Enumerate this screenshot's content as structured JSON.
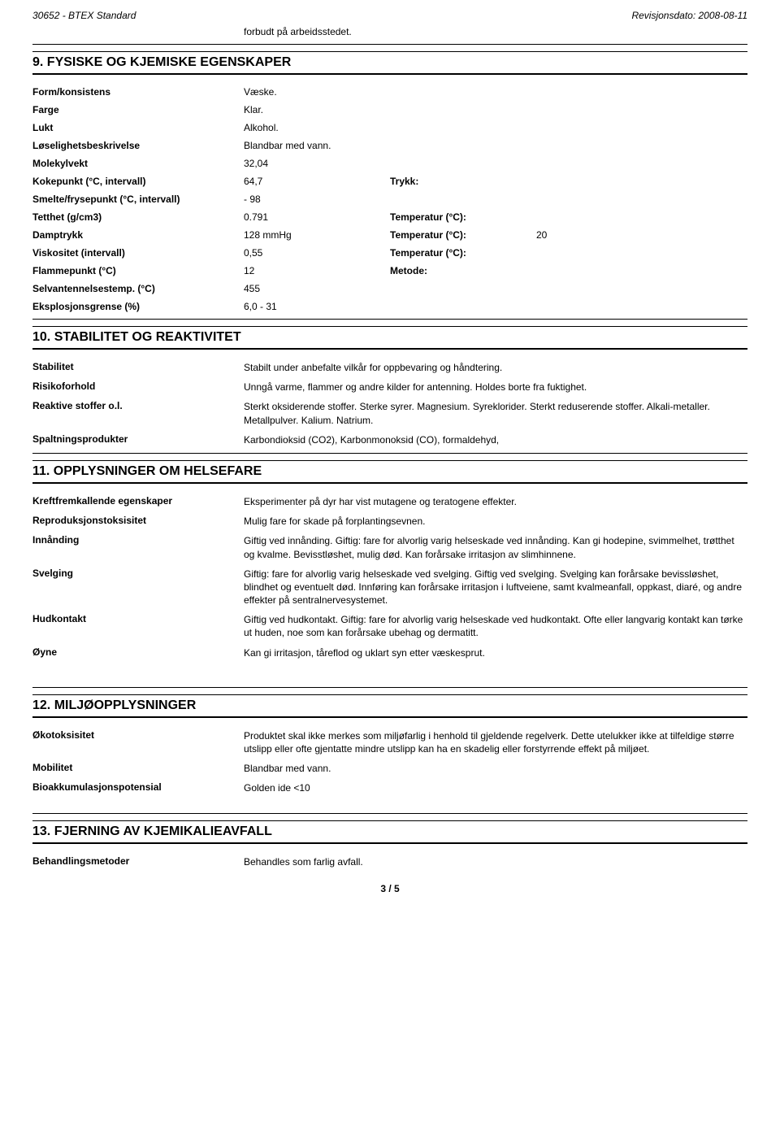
{
  "header": {
    "left": "30652 - BTEX Standard",
    "right": "Revisjonsdato: 2008-08-11"
  },
  "carryover_text": "forbudt på arbeidsstedet.",
  "sections": {
    "s9": "9.   FYSISKE OG KJEMISKE EGENSKAPER",
    "s10": "10.   STABILITET OG REAKTIVITET",
    "s11": "11.   OPPLYSNINGER OM HELSEFARE",
    "s12": "12.   MILJØOPPLYSNINGER",
    "s13": "13.   FJERNING AV KJEMIKALIEAVFALL"
  },
  "s9_props": [
    {
      "k": "Form/konsistens",
      "v": "Væske."
    },
    {
      "k": "Farge",
      "v": "Klar."
    },
    {
      "k": "Lukt",
      "v": "Alkohol."
    },
    {
      "k": "Løselighetsbeskrivelse",
      "v": "Blandbar med vann."
    },
    {
      "k": "Molekylvekt",
      "v": "32,04"
    },
    {
      "k": "Kokepunkt (°C, intervall)",
      "v": "64,7",
      "k2": "Trykk:"
    },
    {
      "k": "Smelte/frysepunkt (°C, intervall)",
      "v": "- 98"
    },
    {
      "k": "Tetthet (g/cm3)",
      "v": "0.791",
      "k2": "Temperatur (°C):"
    },
    {
      "k": "Damptrykk",
      "v": "128 mmHg",
      "k2": "Temperatur (°C):",
      "v2": "20"
    },
    {
      "k": "Viskositet (intervall)",
      "v": "0,55",
      "k2": "Temperatur (°C):"
    },
    {
      "k": "Flammepunkt (°C)",
      "v": "12",
      "k2": "Metode:"
    },
    {
      "k": "Selvantennelsestemp. (°C)",
      "v": "455"
    },
    {
      "k": "Eksplosjonsgrense (%)",
      "v": "6,0 - 31"
    }
  ],
  "s10_items": [
    {
      "k": "Stabilitet",
      "v": "Stabilt under anbefalte vilkår for oppbevaring og håndtering."
    },
    {
      "k": "Risikoforhold",
      "v": "Unngå varme, flammer og andre kilder for antenning. Holdes borte fra fuktighet."
    },
    {
      "k": "Reaktive stoffer o.l.",
      "v": "Sterkt oksiderende stoffer. Sterke syrer. Magnesium. Syreklorider. Sterkt reduserende stoffer. Alkali-metaller. Metallpulver. Kalium. Natrium."
    },
    {
      "k": "Spaltningsprodukter",
      "v": "Karbondioksid (CO2), Karbonmonoksid (CO), formaldehyd,"
    }
  ],
  "s11_items": [
    {
      "k": "Kreftfremkallende egenskaper",
      "v": "Eksperimenter på dyr har vist mutagene og teratogene effekter."
    },
    {
      "k": "Reproduksjonstoksisitet",
      "v": "Mulig fare for skade på forplantingsevnen."
    },
    {
      "k": "Innånding",
      "v": "Giftig ved innånding. Giftig: fare for alvorlig varig helseskade ved innånding. Kan gi hodepine, svimmelhet, trøtthet og kvalme. Bevisstløshet, mulig død. Kan forårsake irritasjon av slimhinnene."
    },
    {
      "k": "Svelging",
      "v": "Giftig: fare for alvorlig varig helseskade ved svelging. Giftig ved svelging. Svelging kan forårsake bevissløshet, blindhet og eventuelt død. Innføring kan forårsake irritasjon i luftveiene, samt kvalmeanfall, oppkast, diaré, og andre effekter på sentralnervesystemet."
    },
    {
      "k": "Hudkontakt",
      "v": "Giftig ved hudkontakt. Giftig: fare for alvorlig varig helseskade ved hudkontakt. Ofte eller langvarig kontakt kan tørke ut huden, noe som kan forårsake ubehag og dermatitt."
    },
    {
      "k": "Øyne",
      "v": "Kan gi irritasjon, tåreflod og uklart syn etter væskesprut."
    }
  ],
  "s12_items": [
    {
      "k": "Økotoksisitet",
      "v": "Produktet skal ikke merkes som miljøfarlig i henhold til gjeldende regelverk. Dette utelukker ikke at tilfeldige større utslipp eller ofte gjentatte mindre utslipp kan ha en skadelig eller forstyrrende effekt på miljøet."
    },
    {
      "k": "Mobilitet",
      "v": "Blandbar med vann."
    },
    {
      "k": "Bioakkumulasjonspotensial",
      "v": "Golden ide <10"
    }
  ],
  "s13_items": [
    {
      "k": "Behandlingsmetoder",
      "v": "Behandles som farlig avfall."
    }
  ],
  "pager": "3 / 5"
}
